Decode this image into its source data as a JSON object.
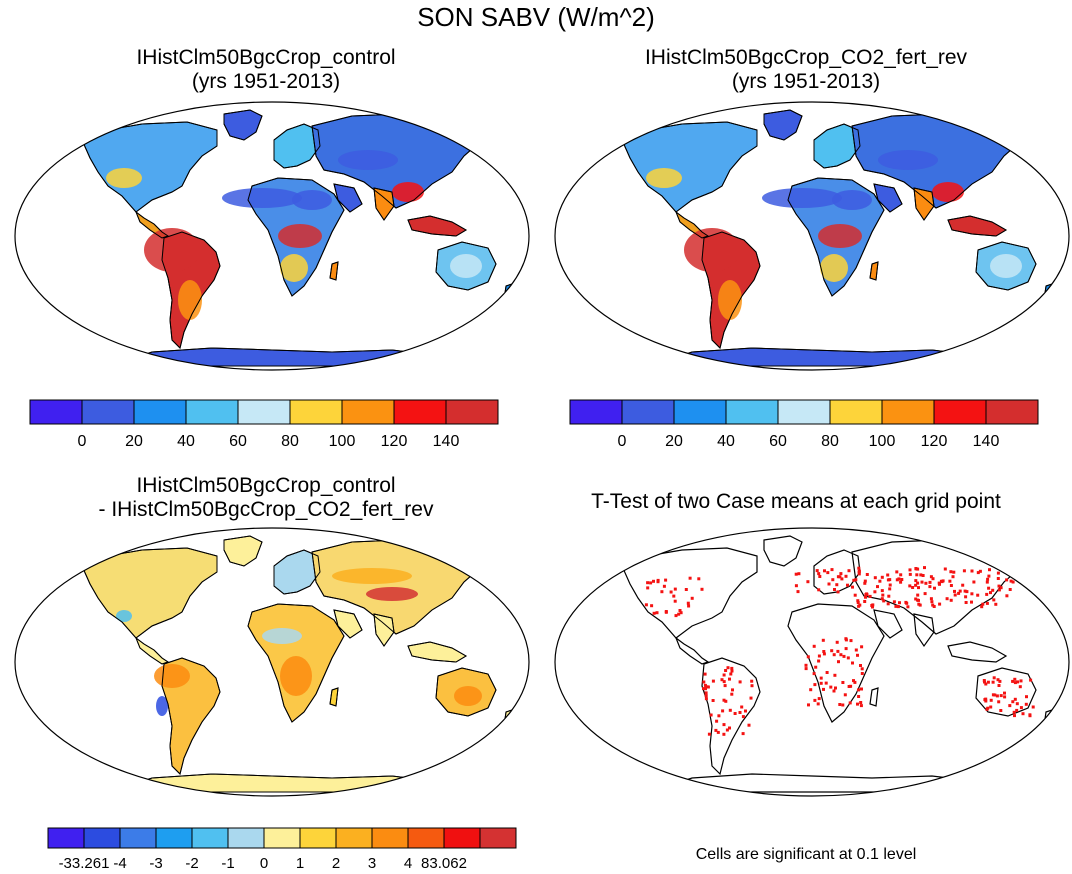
{
  "figure": {
    "title": "SON SABV (W/m^2)"
  },
  "panels": [
    {
      "title_line1": "IHistClm50BgcCrop_control",
      "title_line2": "(yrs 1951-2013)"
    },
    {
      "title_line1": "IHistClm50BgcCrop_CO2_fert_rev",
      "title_line2": "(yrs 1951-2013)"
    },
    {
      "title_line1": "IHistClm50BgcCrop_control",
      "title_line2": "- IHistClm50BgcCrop_CO2_fert_rev"
    },
    {
      "title_line1": "T-Test of two Case means at each grid point",
      "title_line2": ""
    }
  ],
  "colorbars": {
    "absolute": {
      "colors": [
        "#4020f0",
        "#3d5ce0",
        "#1e90f0",
        "#50c0f0",
        "#c6e8f6",
        "#fdd43a",
        "#fb9211",
        "#f41212",
        "#d42e2e"
      ],
      "labels": [
        "0",
        "20",
        "40",
        "60",
        "80",
        "100",
        "120",
        "140"
      ]
    },
    "difference": {
      "colors": [
        "#4020f0",
        "#2c4ce0",
        "#3c7ce8",
        "#1e9ef0",
        "#50c0f0",
        "#aad8ee",
        "#fdf09a",
        "#fdd43a",
        "#fbb020",
        "#fb8c11",
        "#f55a10",
        "#f01010",
        "#d43232"
      ],
      "labels": [
        "-33.261",
        "-4",
        "-3",
        "-2",
        "-1",
        "0",
        "1",
        "2",
        "3",
        "4",
        "83.062"
      ]
    }
  },
  "note": "Cells are significant at 0.1 level"
}
